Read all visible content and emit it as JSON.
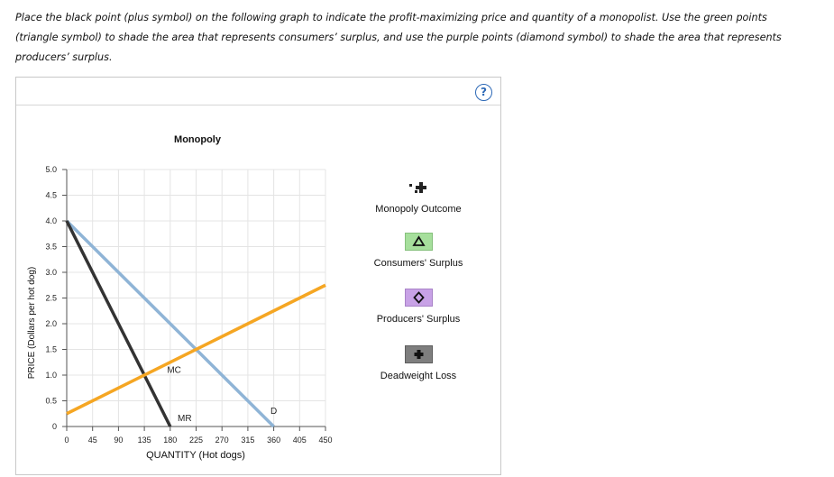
{
  "instructions": "Place the black point (plus symbol) on the following graph to indicate the profit-maximizing price and quantity of a monopolist. Use the green points (triangle symbol) to shade the area that represents consumers’ surplus, and use the purple points (diamond symbol) to shade the area that represents producers’ surplus.",
  "help_label": "?",
  "legend": {
    "monopoly_outcome": "Monopoly Outcome",
    "consumers_surplus": "Consumers' Surplus",
    "producers_surplus": "Producers' Surplus",
    "deadweight_loss": "Deadweight Loss"
  },
  "icons": {
    "monopoly_outcome": "plus-icon",
    "consumers_surplus": "triangle-icon",
    "producers_surplus": "diamond-icon",
    "deadweight_loss": "plus-icon"
  },
  "colors": {
    "demand": "#8fb4d6",
    "marginal_revenue": "#333333",
    "marginal_cost": "#f5a623",
    "consumers_surplus": "#a6df9c",
    "producers_surplus": "#c8a2e6",
    "deadweight_loss": "#7e7e7e",
    "help": "#2c68b6"
  },
  "chart_data": {
    "type": "line",
    "title": "Monopoly",
    "xlabel": "QUANTITY (Hot dogs)",
    "ylabel": "PRICE (Dollars per hot dog)",
    "xlim": [
      0,
      450
    ],
    "ylim": [
      0,
      5
    ],
    "xticks": [
      "0",
      "45",
      "90",
      "135",
      "180",
      "225",
      "270",
      "315",
      "360",
      "405",
      "450"
    ],
    "yticks": [
      "0",
      "0.5",
      "1.0",
      "1.5",
      "2.0",
      "2.5",
      "3.0",
      "3.5",
      "4.0",
      "4.5",
      "5.0"
    ],
    "grid": true,
    "series": [
      {
        "name": "D",
        "points": [
          [
            0,
            4.0
          ],
          [
            360,
            0
          ]
        ]
      },
      {
        "name": "MR",
        "points": [
          [
            0,
            4.0
          ],
          [
            180,
            0
          ]
        ]
      },
      {
        "name": "MC",
        "points": [
          [
            0,
            0.25
          ],
          [
            450,
            2.75
          ]
        ]
      }
    ]
  }
}
